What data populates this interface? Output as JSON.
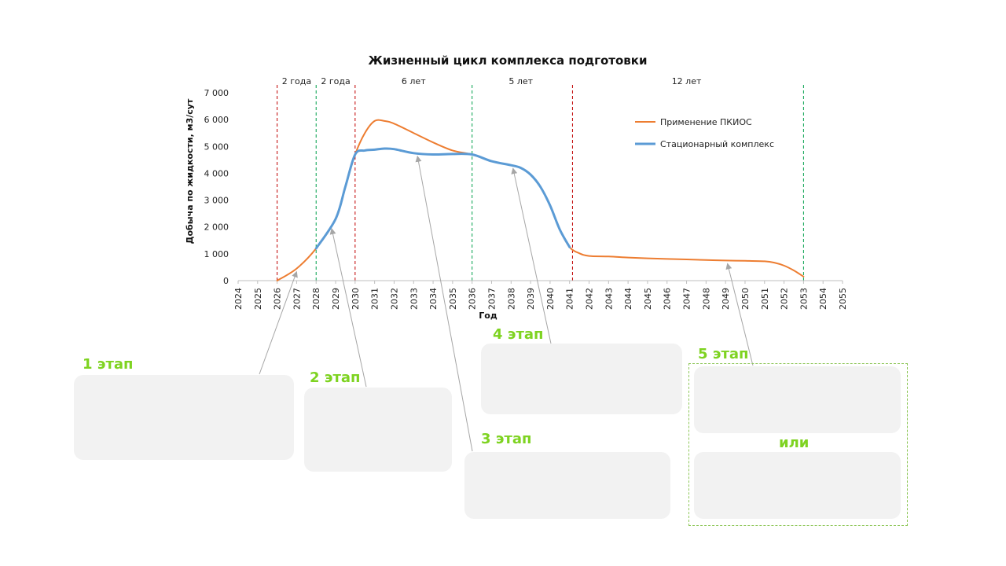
{
  "chart_data": {
    "type": "line",
    "title": "Жизненный цикл комплекса подготовки",
    "xlabel": "Год",
    "ylabel": "Добыча по жидкости, м3/сут",
    "xlim": [
      2024,
      2055
    ],
    "ylim": [
      0,
      7000
    ],
    "y_ticks": [
      0,
      1000,
      2000,
      3000,
      4000,
      5000,
      6000,
      7000
    ],
    "y_tick_labels": [
      "0",
      "1 000",
      "2 000",
      "3 000",
      "4 000",
      "5 000",
      "6 000",
      "7 000"
    ],
    "x_tick_labels": [
      "2024",
      "2025",
      "2026",
      "2027",
      "2028",
      "2029",
      "2030",
      "2031",
      "2032",
      "2033",
      "2034",
      "2035",
      "2036",
      "2037",
      "2038",
      "2039",
      "2040",
      "2041",
      "2042",
      "2043",
      "2044",
      "2045",
      "2046",
      "2047",
      "2048",
      "2049",
      "2050",
      "2051",
      "2052",
      "2053",
      "2054",
      "2055"
    ],
    "legend_position": "top-right",
    "series": [
      {
        "name": "Применение ПКИОС",
        "color": "#ed7d31",
        "x": [
          2026,
          2027,
          2028,
          2029,
          2029.5,
          2030,
          2030.5,
          2031,
          2031.5,
          2032,
          2033,
          2034,
          2035,
          2036,
          2037,
          2038,
          2038.5,
          2039,
          2039.5,
          2040,
          2040.5,
          2041,
          2041.5,
          2042,
          2043,
          2044,
          2045,
          2046,
          2047,
          2048,
          2049,
          2050,
          2051,
          2051.5,
          2052,
          2052.5,
          2053
        ],
        "y": [
          0,
          450,
          1200,
          2300,
          3500,
          4700,
          5500,
          5950,
          5950,
          5850,
          5500,
          5150,
          4850,
          4700,
          4450,
          4300,
          4200,
          3950,
          3500,
          2800,
          1900,
          1250,
          1020,
          920,
          900,
          860,
          830,
          810,
          790,
          770,
          750,
          740,
          720,
          670,
          560,
          380,
          150
        ]
      },
      {
        "name": "Стационарный комплекс",
        "color": "#5b9bd5",
        "x": [
          2028,
          2029,
          2029.5,
          2030,
          2030.5,
          2031,
          2031.5,
          2032,
          2033,
          2034,
          2035,
          2036,
          2037,
          2038,
          2038.5,
          2039,
          2039.5,
          2040,
          2040.5,
          2041
        ],
        "y": [
          1200,
          2300,
          3500,
          4700,
          4850,
          4880,
          4920,
          4900,
          4750,
          4700,
          4720,
          4700,
          4450,
          4300,
          4200,
          3950,
          3500,
          2800,
          1900,
          1250
        ]
      }
    ],
    "periods": [
      {
        "start": 2026,
        "end": 2028,
        "label": "2 года"
      },
      {
        "start": 2028,
        "end": 2030,
        "label": "2 года"
      },
      {
        "start": 2030,
        "end": 2036,
        "label": "6 лет"
      },
      {
        "start": 2036,
        "end": 2041,
        "label": "5 лет"
      },
      {
        "start": 2041,
        "end": 2053,
        "label": "12 лет"
      }
    ],
    "vlines": [
      {
        "x": 2026,
        "color": "#c00000"
      },
      {
        "x": 2028,
        "color": "#00a04a"
      },
      {
        "x": 2030,
        "color": "#c00000"
      },
      {
        "x": 2036,
        "color": "#00a04a"
      },
      {
        "x": 2041.15,
        "color": "#c00000"
      },
      {
        "x": 2053,
        "color": "#00a04a"
      }
    ]
  },
  "stages": [
    {
      "label": "1 этап",
      "anchor_x": 2027,
      "anchor_y": 450
    },
    {
      "label": "2 этап",
      "anchor_x": 2028.8,
      "anchor_y": 2050
    },
    {
      "label": "3 этап",
      "anchor_x": 2033.2,
      "anchor_y": 4750
    },
    {
      "label": "4 этап",
      "anchor_x": 2038.1,
      "anchor_y": 4300
    },
    {
      "label": "5 этап",
      "anchor_x": 2049.1,
      "anchor_y": 750
    }
  ],
  "or_label": "или"
}
